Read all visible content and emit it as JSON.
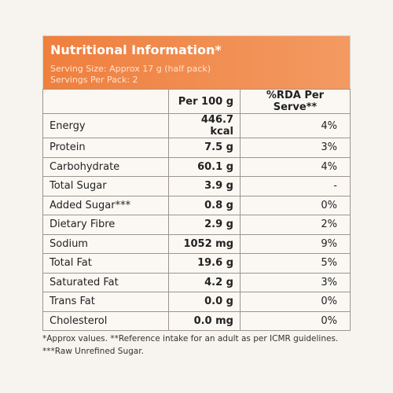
{
  "header": {
    "title": "Nutritional Information*",
    "serving_size": "Serving Size: Approx 17 g (half pack)",
    "servings": "Servings Per Pack: 2"
  },
  "table": {
    "columns": [
      "Per 100 g",
      "%RDA Per Serve**"
    ],
    "rows": [
      [
        "Energy",
        "446.7 kcal",
        "4%"
      ],
      [
        "Protein",
        "7.5 g",
        "3%"
      ],
      [
        "Carbohydrate",
        "60.1 g",
        "4%"
      ],
      [
        "Total Sugar",
        "3.9 g",
        "-"
      ],
      [
        "Added Sugar***",
        "0.8 g",
        "0%"
      ],
      [
        "Dietary Fibre",
        "2.9 g",
        "2%"
      ],
      [
        "Sodium",
        "1052 mg",
        "9%"
      ],
      [
        "Total Fat",
        "19.6 g",
        "5%"
      ],
      [
        "Saturated Fat",
        "4.2 g",
        "3%"
      ],
      [
        "Trans Fat",
        "0.0 g",
        "0%"
      ],
      [
        "Cholesterol",
        "0.0 mg",
        "0%"
      ]
    ]
  },
  "footnotes": [
    "*Approx values. **Reference intake for an adult as per ICMR guidelines.",
    "***Raw Unrefined Sugar."
  ]
}
